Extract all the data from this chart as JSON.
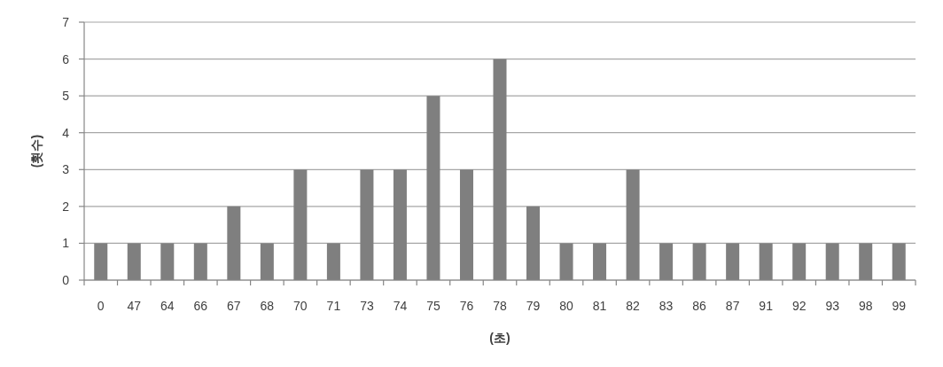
{
  "chart_data": {
    "type": "bar",
    "xlabel": "(초)",
    "ylabel": "(횟수)",
    "categories": [
      "0",
      "47",
      "64",
      "66",
      "67",
      "68",
      "70",
      "71",
      "73",
      "74",
      "75",
      "76",
      "78",
      "79",
      "80",
      "81",
      "82",
      "83",
      "86",
      "87",
      "91",
      "92",
      "93",
      "98",
      "99"
    ],
    "values": [
      1,
      1,
      1,
      1,
      2,
      1,
      3,
      1,
      3,
      3,
      5,
      3,
      6,
      2,
      1,
      1,
      3,
      1,
      1,
      1,
      1,
      1,
      1,
      1,
      1
    ],
    "color": "#7f7f7f",
    "ylim": [
      0,
      7
    ],
    "yticks": [
      0,
      1,
      2,
      3,
      4,
      5,
      6,
      7
    ],
    "grid": "y"
  }
}
